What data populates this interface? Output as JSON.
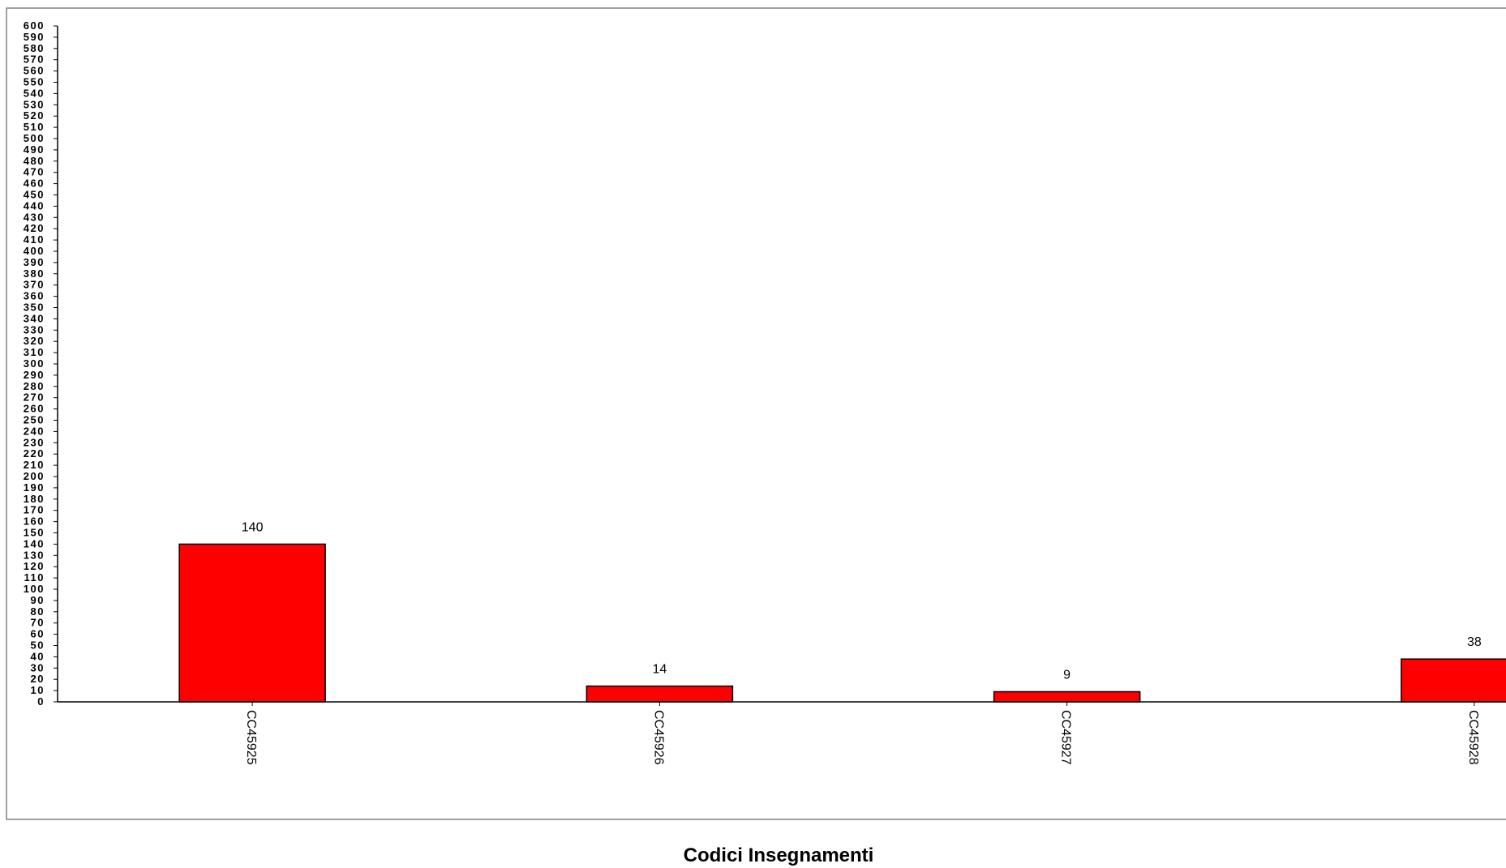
{
  "chart_data": {
    "type": "bar",
    "categories": [
      "CC45925",
      "CC45926",
      "CC45927",
      "CC45928"
    ],
    "values": [
      140,
      14,
      9,
      38
    ],
    "data_labels": [
      "140",
      "14",
      "9",
      "38"
    ],
    "title": "",
    "xlabel": "Codici Insegnamenti",
    "ylabel": "",
    "ylim": [
      0,
      600
    ],
    "ytick_step": 10,
    "grid": false,
    "legend": "none",
    "bar_color": "#ff0000",
    "bar_edge_color": "#000000"
  }
}
